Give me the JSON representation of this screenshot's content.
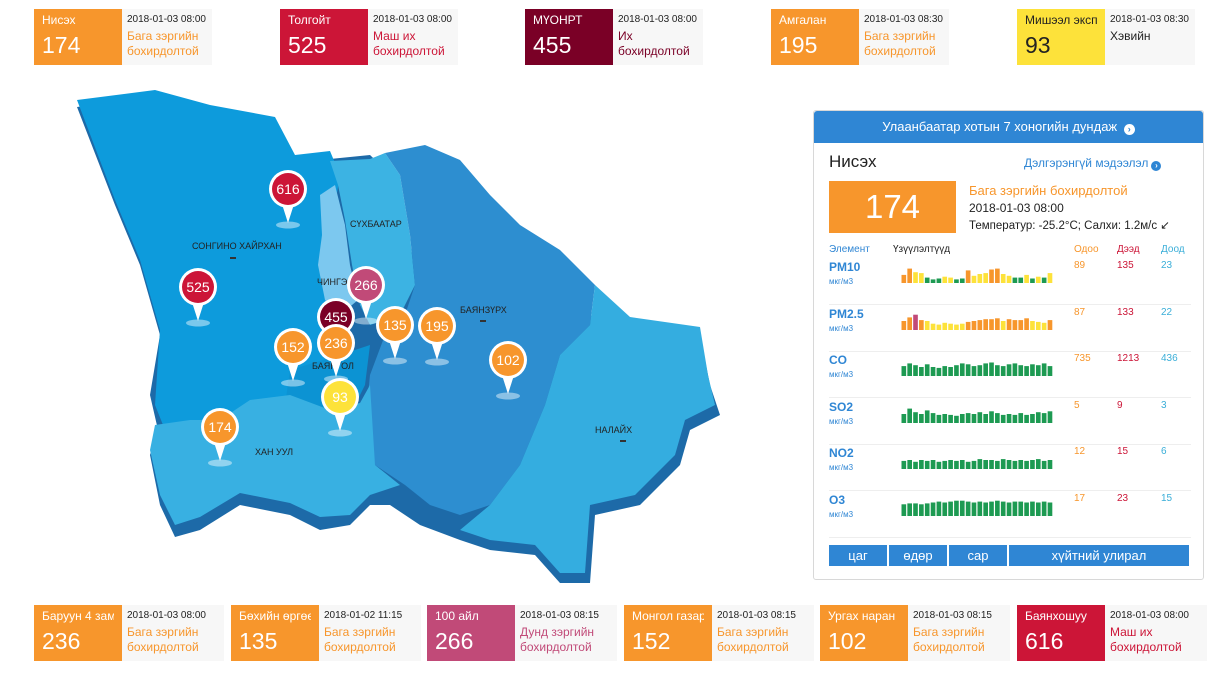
{
  "colors": {
    "orange": "#f7962c",
    "red": "#cc1537",
    "darkred": "#7a0026",
    "yellow": "#fde23a",
    "pink": "#c14a78",
    "blue": "#2f86d4",
    "green": "#1d9a52"
  },
  "top_stations": [
    {
      "name": "Нисэх",
      "value": "174",
      "time": "2018-01-03 08:00",
      "status": "Бага зэргийн бохирдолтой",
      "color": "#f7962c",
      "status_color": "#f7962c"
    },
    {
      "name": "Толгойт",
      "value": "525",
      "time": "2018-01-03 08:00",
      "status": "Маш их бохирдолтой",
      "color": "#cc1537",
      "status_color": "#cc1537"
    },
    {
      "name": "МҮОНРТ",
      "value": "455",
      "time": "2018-01-03 08:00",
      "status": "Их бохирдолтой",
      "color": "#7a0026",
      "status_color": "#7a0026"
    },
    {
      "name": "Амгалан",
      "value": "195",
      "time": "2018-01-03 08:30",
      "status": "Бага зэргийн бохирдолтой",
      "color": "#f7962c",
      "status_color": "#f7962c"
    },
    {
      "name": "Мишээл экспо",
      "value": "93",
      "time": "2018-01-03 08:30",
      "status": "Хэвийн",
      "color": "#fde23a",
      "status_color": "#222222",
      "text_color": "#222222"
    }
  ],
  "bottom_stations": [
    {
      "name": "Баруун 4 зам",
      "value": "236",
      "time": "2018-01-03 08:00",
      "status": "Бага зэргийн бохирдолтой",
      "color": "#f7962c",
      "status_color": "#f7962c"
    },
    {
      "name": "Бөхийн өргөө",
      "value": "135",
      "time": "2018-01-02 11:15",
      "status": "Бага зэргийн бохирдолтой",
      "color": "#f7962c",
      "status_color": "#f7962c"
    },
    {
      "name": "100 айл",
      "value": "266",
      "time": "2018-01-03 08:15",
      "status": "Дунд зэргийн бохирдолтой",
      "color": "#c14a78",
      "status_color": "#c14a78"
    },
    {
      "name": "Монгол газар",
      "value": "152",
      "time": "2018-01-03 08:15",
      "status": "Бага зэргийн бохирдолтой",
      "color": "#f7962c",
      "status_color": "#f7962c"
    },
    {
      "name": "Ургах наран",
      "value": "102",
      "time": "2018-01-03 08:15",
      "status": "Бага зэргийн бохирдолтой",
      "color": "#f7962c",
      "status_color": "#f7962c"
    },
    {
      "name": "Баянхошуу",
      "value": "616",
      "time": "2018-01-03 08:00",
      "status": "Маш их бохирдолтой",
      "color": "#cc1537",
      "status_color": "#cc1537"
    }
  ],
  "map": {
    "districts": [
      "СОНГИНО ХАЙРХАН",
      "СҮХБААТАР",
      "ЧИНГЭ",
      "БАЯНЗҮРХ",
      "БАЯНГОЛ",
      "ХАН УУЛ",
      "НАЛАЙХ"
    ],
    "pins": [
      {
        "value": "616",
        "color": "#cc1537"
      },
      {
        "value": "525",
        "color": "#cc1537"
      },
      {
        "value": "266",
        "color": "#c14a78"
      },
      {
        "value": "455",
        "color": "#7a0026"
      },
      {
        "value": "135",
        "color": "#f7962c"
      },
      {
        "value": "195",
        "color": "#f7962c"
      },
      {
        "value": "236",
        "color": "#f7962c"
      },
      {
        "value": "152",
        "color": "#f7962c"
      },
      {
        "value": "102",
        "color": "#f7962c"
      },
      {
        "value": "93",
        "color": "#fde23a"
      },
      {
        "value": "174",
        "color": "#f7962c"
      }
    ]
  },
  "panel": {
    "header": "Улаанбаатар хотын 7 хоногийн дундаж",
    "header_icon": "chevron-right-circle-icon",
    "station": "Нисэх",
    "more_link": "Дэлгэрэнгүй мэдээлэл",
    "aqi": "174",
    "status": "Бага зэргийн бохирдолтой",
    "time": "2018-01-03 08:00",
    "weather": "Температур: -25.2°C; Салхи: 1.2м/с",
    "wind_icon": "wind-direction-arrow-icon",
    "columns": {
      "element": "Элемент",
      "indicators": "Үзүүлэлтүүд",
      "now": "Одоо",
      "max": "Дээд",
      "min": "Доод"
    },
    "pollutants": [
      {
        "name": "PM10",
        "unit": "мкг/м3",
        "now": "89",
        "max": "135",
        "min": "23",
        "bars": [
          0.45,
          0.8,
          0.6,
          0.55,
          0.3,
          0.2,
          0.25,
          0.35,
          0.3,
          0.2,
          0.25,
          0.7,
          0.4,
          0.5,
          0.55,
          0.75,
          0.8,
          0.5,
          0.4,
          0.3,
          0.3,
          0.45,
          0.25,
          0.35,
          0.3,
          0.55
        ],
        "bar_colors": [
          "#f7962c",
          "#f7962c",
          "#fde23a",
          "#fde23a",
          "#1d9a52",
          "#1d9a52",
          "#1d9a52",
          "#fde23a",
          "#fde23a",
          "#1d9a52",
          "#1d9a52",
          "#f7962c",
          "#fde23a",
          "#fde23a",
          "#fde23a",
          "#f7962c",
          "#f7962c",
          "#fde23a",
          "#fde23a",
          "#1d9a52",
          "#1d9a52",
          "#fde23a",
          "#1d9a52",
          "#fde23a",
          "#1d9a52",
          "#fde23a"
        ]
      },
      {
        "name": "PM2.5",
        "unit": "мкг/м3",
        "now": "87",
        "max": "133",
        "min": "22",
        "bars": [
          0.5,
          0.7,
          0.85,
          0.55,
          0.5,
          0.35,
          0.3,
          0.4,
          0.35,
          0.3,
          0.35,
          0.45,
          0.5,
          0.55,
          0.6,
          0.6,
          0.65,
          0.5,
          0.6,
          0.55,
          0.55,
          0.65,
          0.5,
          0.45,
          0.4,
          0.55
        ],
        "bar_colors": [
          "#f7962c",
          "#f7962c",
          "#c14a78",
          "#f7962c",
          "#fde23a",
          "#fde23a",
          "#fde23a",
          "#fde23a",
          "#fde23a",
          "#fde23a",
          "#fde23a",
          "#f7962c",
          "#f7962c",
          "#f7962c",
          "#f7962c",
          "#f7962c",
          "#f7962c",
          "#fde23a",
          "#f7962c",
          "#f7962c",
          "#f7962c",
          "#f7962c",
          "#fde23a",
          "#fde23a",
          "#fde23a",
          "#f7962c"
        ]
      },
      {
        "name": "CO",
        "unit": "мкг/м3",
        "now": "735",
        "max": "1213",
        "min": "436",
        "bars": [
          0.55,
          0.7,
          0.6,
          0.5,
          0.65,
          0.5,
          0.45,
          0.55,
          0.5,
          0.6,
          0.7,
          0.65,
          0.55,
          0.6,
          0.7,
          0.75,
          0.6,
          0.55,
          0.65,
          0.7,
          0.6,
          0.55,
          0.65,
          0.6,
          0.7,
          0.55
        ],
        "bar_colors": [
          "#1d9a52"
        ]
      },
      {
        "name": "SO2",
        "unit": "мкг/м3",
        "now": "5",
        "max": "9",
        "min": "3",
        "bars": [
          0.5,
          0.8,
          0.6,
          0.5,
          0.7,
          0.55,
          0.45,
          0.5,
          0.45,
          0.4,
          0.5,
          0.55,
          0.5,
          0.6,
          0.5,
          0.65,
          0.55,
          0.45,
          0.5,
          0.45,
          0.55,
          0.45,
          0.5,
          0.6,
          0.55,
          0.65
        ],
        "bar_colors": [
          "#1d9a52"
        ]
      },
      {
        "name": "NO2",
        "unit": "мкг/м3",
        "now": "12",
        "max": "15",
        "min": "6",
        "bars": [
          0.45,
          0.5,
          0.4,
          0.5,
          0.45,
          0.5,
          0.4,
          0.45,
          0.5,
          0.45,
          0.5,
          0.4,
          0.45,
          0.55,
          0.5,
          0.5,
          0.45,
          0.55,
          0.5,
          0.45,
          0.5,
          0.45,
          0.5,
          0.55,
          0.45,
          0.5
        ],
        "bar_colors": [
          "#1d9a52"
        ]
      },
      {
        "name": "O3",
        "unit": "мкг/м3",
        "now": "17",
        "max": "23",
        "min": "15",
        "bars": [
          0.65,
          0.7,
          0.7,
          0.65,
          0.7,
          0.75,
          0.8,
          0.75,
          0.8,
          0.85,
          0.85,
          0.8,
          0.75,
          0.8,
          0.75,
          0.8,
          0.85,
          0.8,
          0.75,
          0.8,
          0.8,
          0.75,
          0.8,
          0.75,
          0.8,
          0.75
        ],
        "bar_colors": [
          "#1d9a52"
        ]
      }
    ],
    "time_buttons": [
      "цаг",
      "өдөр",
      "сар",
      "хүйтний улирал"
    ]
  }
}
